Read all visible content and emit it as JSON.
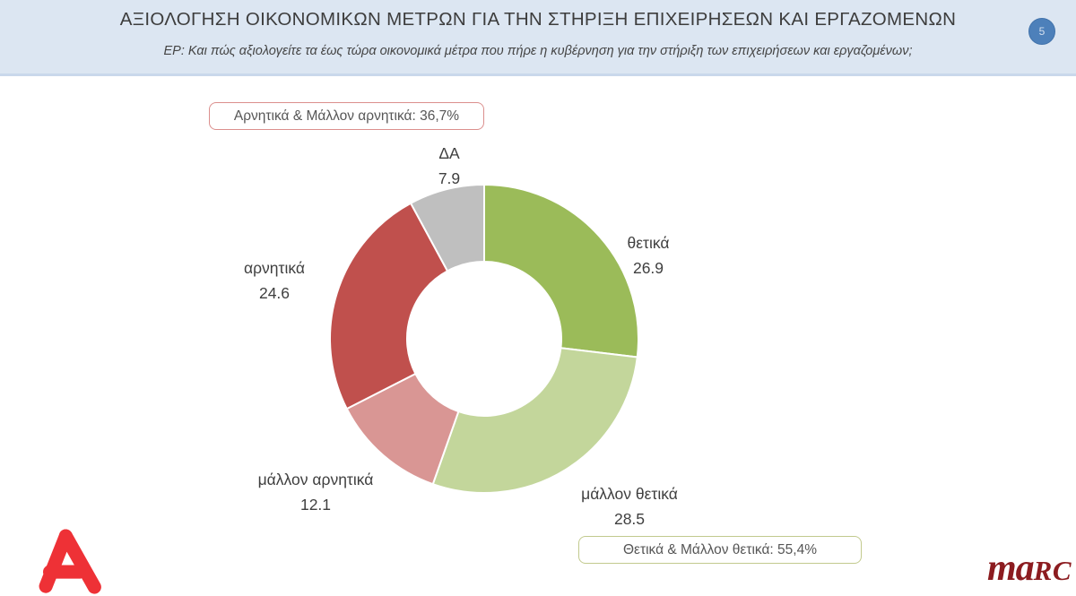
{
  "header": {
    "title": "ΑΞΙΟΛΟΓΗΣΗ ΟΙΚΟΝΟΜΙΚΩΝ ΜΕΤΡΩΝ ΓΙΑ ΤΗΝ ΣΤΗΡΙΞΗ ΕΠΙΧΕΙΡΗΣΕΩΝ ΚΑΙ ΕΡΓΑΖΟΜΕΝΩΝ",
    "subtitle": "ΕΡ: Και πώς αξιολογείτε τα έως τώρα οικονομικά μέτρα που πήρε η κυβέρνηση για την στήριξη των επιχειρήσεων και εργαζομένων;",
    "page_number": "5"
  },
  "chart_data": {
    "type": "pie",
    "subtype": "donut",
    "title": "ΑΞΙΟΛΟΓΗΣΗ ΟΙΚΟΝΟΜΙΚΩΝ ΜΕΤΡΩΝ ΓΙΑ ΤΗΝ ΣΤΗΡΙΞΗ ΕΠΙΧΕΙΡΗΣΕΩΝ ΚΑΙ ΕΡΓΑΖΟΜΕΝΩΝ",
    "start_angle_deg": 0,
    "direction": "clockwise",
    "inner_radius_ratio": 0.5,
    "legend": "none",
    "slices": [
      {
        "label": "θετικά",
        "value": 26.9,
        "color": "#9bbb59"
      },
      {
        "label": "μάλλον θετικά",
        "value": 28.5,
        "color": "#c3d69b"
      },
      {
        "label": "μάλλον αρνητικά",
        "value": 12.1,
        "color": "#d99694"
      },
      {
        "label": "αρνητικά",
        "value": 24.6,
        "color": "#c0504d"
      },
      {
        "label": "ΔΑ",
        "value": 7.9,
        "color": "#bfbfbf"
      }
    ],
    "annotations": [
      {
        "id": "negative_total",
        "text": "Αρνητικά & Μάλλον αρνητικά: 36,7%",
        "border_color": "#db8f8d"
      },
      {
        "id": "positive_total",
        "text": "Θετικά & Μάλλον θετικά: 55,4%",
        "border_color": "#c2ca8e"
      }
    ]
  },
  "logos": {
    "alpha_icon": "alpha-tv-logo",
    "alpha_color": "#ee3136",
    "marc": {
      "ma": "ma",
      "rc": "RC"
    },
    "marc_color": "#8c1c20"
  }
}
